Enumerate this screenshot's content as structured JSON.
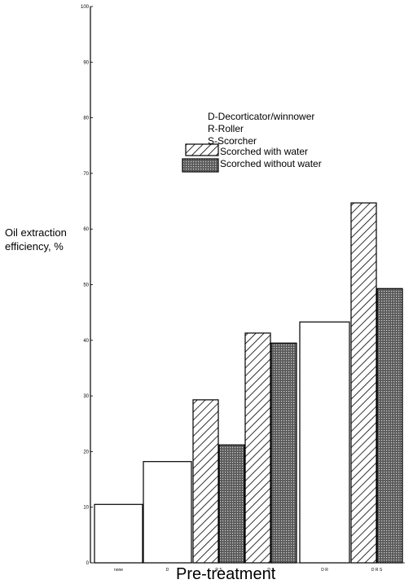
{
  "chart_data": {
    "type": "bar",
    "ylabel": "Oil extraction efficiency, %",
    "xlabel": "Pre-treatment",
    "ylim": [
      0,
      100
    ],
    "yticks": [
      0,
      10,
      20,
      30,
      40,
      50,
      60,
      70,
      80,
      90,
      100
    ],
    "groups": [
      {
        "label": "none",
        "values": [
          {
            "series": "plain",
            "value": 10.5
          }
        ]
      },
      {
        "label": "D",
        "values": [
          {
            "series": "plain",
            "value": 18.2
          }
        ]
      },
      {
        "label": "R S",
        "values": [
          {
            "series": "Scorched with water",
            "value": 29.3
          },
          {
            "series": "Scorched without water",
            "value": 21.2
          }
        ]
      },
      {
        "label": "D S",
        "values": [
          {
            "series": "Scorched with water",
            "value": 41.3
          },
          {
            "series": "Scorched without water",
            "value": 39.5
          }
        ]
      },
      {
        "label": "D R",
        "values": [
          {
            "series": "plain",
            "value": 43.3
          }
        ]
      },
      {
        "label": "D R S",
        "values": [
          {
            "series": "Scorched with water",
            "value": 64.7
          },
          {
            "series": "Scorched without water",
            "value": 49.3
          }
        ]
      }
    ],
    "legend": {
      "notes": [
        "D-Decorticator/winnower",
        "R-Roller",
        "S-Scorcher"
      ],
      "series": [
        {
          "name": "Scorched with water",
          "pattern": "hatch"
        },
        {
          "name": "Scorched without water",
          "pattern": "dots"
        }
      ]
    },
    "grid": false
  }
}
